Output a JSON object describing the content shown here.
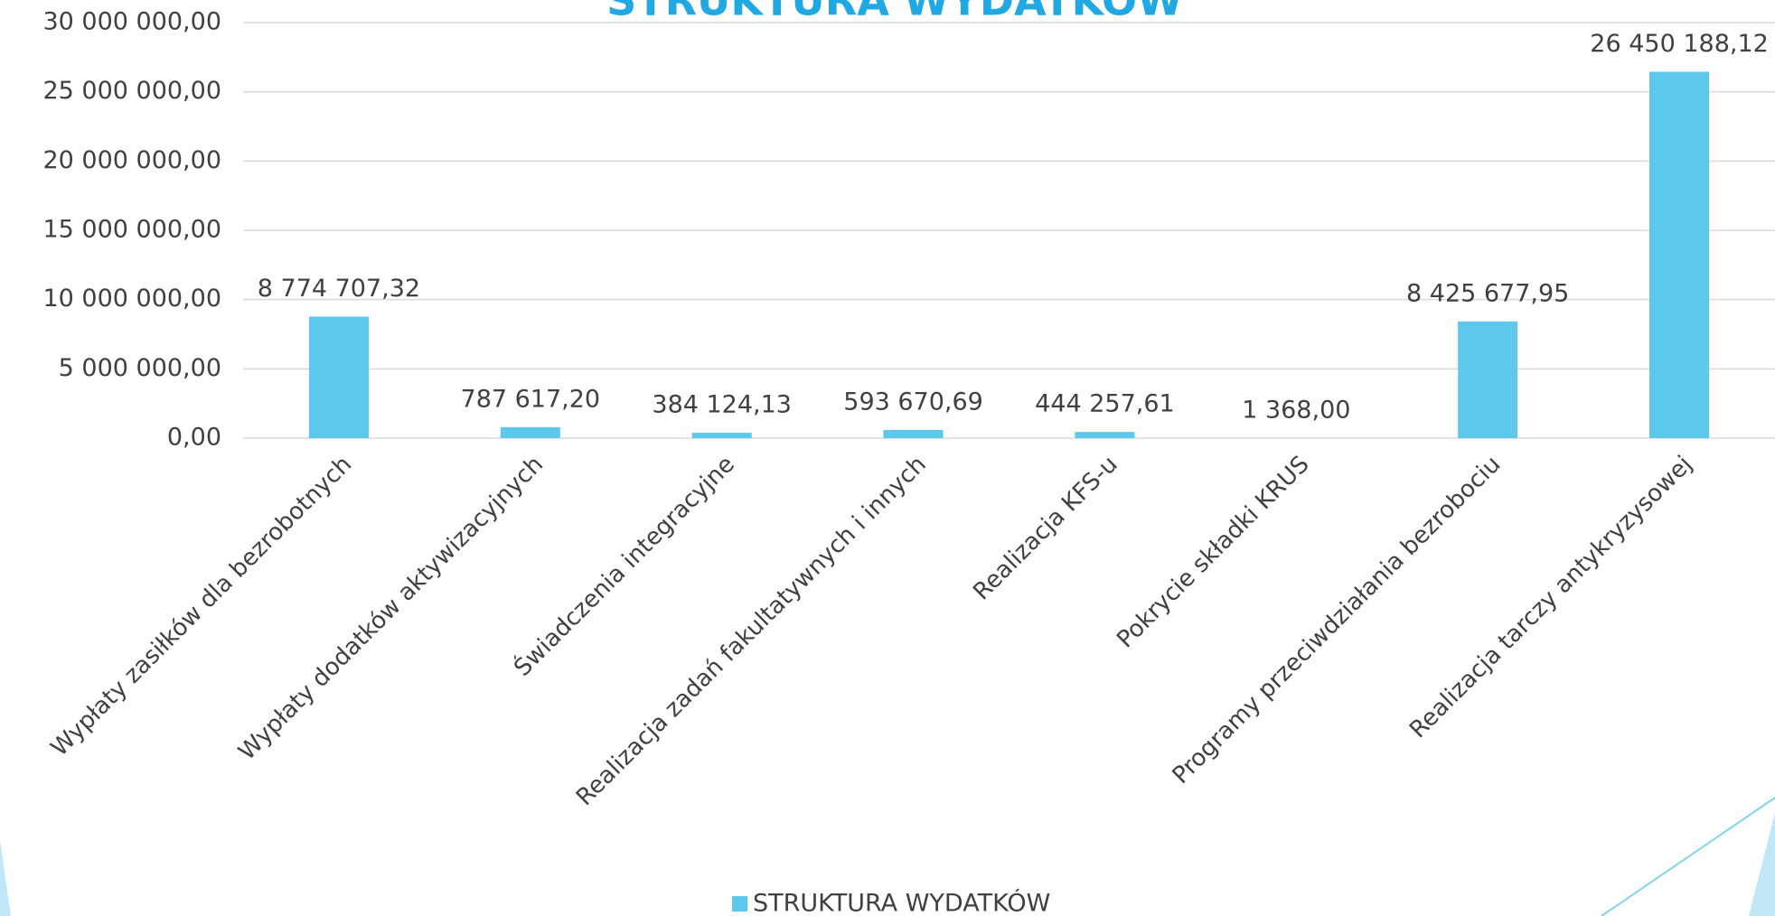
{
  "chart_data": {
    "type": "bar",
    "title": "STRUKTURA WYDATKÓW",
    "categories": [
      "Wypłaty zasiłków dla bezrobotnych",
      "Wypłaty dodatków aktywizacyjnych",
      "Świadczenia integracyjne",
      "Realizacja zadań fakultatywnych i innych",
      "Realizacja KFS-u",
      "Pokrycie składki KRUS",
      "Programy przeciwdziałania bezrobociu",
      "Realizacja tarczy antykryzysowej"
    ],
    "series": [
      {
        "name": "STRUKTURA WYDATKÓW",
        "color": "#5bc8ec",
        "values": [
          8774707.32,
          787617.2,
          384124.13,
          593670.69,
          444257.61,
          1368.0,
          8425677.95,
          26450188.12
        ],
        "value_labels": [
          "8 774 707,32",
          "787 617,20",
          "384 124,13",
          "593 670,69",
          "444 257,61",
          "1 368,00",
          "8 425 677,95",
          "26 450 188,12"
        ]
      }
    ],
    "ylim": [
      0,
      30000000
    ],
    "yticks": [
      {
        "value": 0,
        "label": "0,00"
      },
      {
        "value": 5000000,
        "label": "5 000 000,00"
      },
      {
        "value": 10000000,
        "label": "10 000 000,00"
      },
      {
        "value": 15000000,
        "label": "15 000 000,00"
      },
      {
        "value": 20000000,
        "label": "20 000 000,00"
      },
      {
        "value": 25000000,
        "label": "25 000 000,00"
      },
      {
        "value": 30000000,
        "label": "30 000 000,00"
      }
    ],
    "grid": true,
    "legend": "bottom"
  }
}
